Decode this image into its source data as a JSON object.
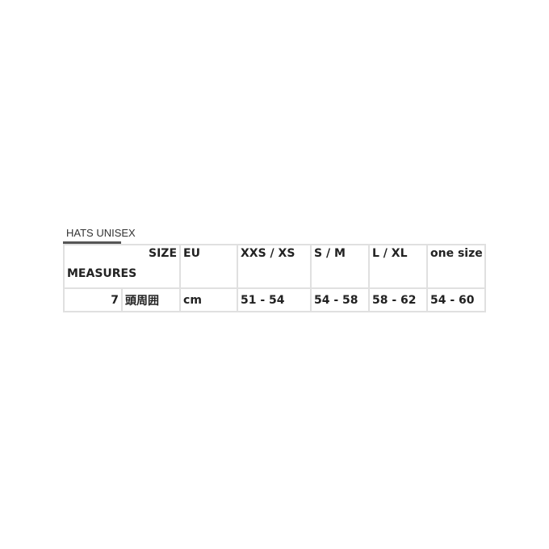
{
  "tab": {
    "label": "HATS UNISEX"
  },
  "table": {
    "header": {
      "size_label": "SIZE",
      "measures_label": "MEASURES",
      "columns": [
        "EU",
        "XXS / XS",
        "S / M",
        "L / XL",
        "one size"
      ]
    },
    "rows": [
      {
        "index": "7",
        "measure": "頭周囲",
        "unit": "cm",
        "values": [
          "51 - 54",
          "54 - 58",
          "58 - 62",
          "54 - 60"
        ]
      }
    ]
  }
}
